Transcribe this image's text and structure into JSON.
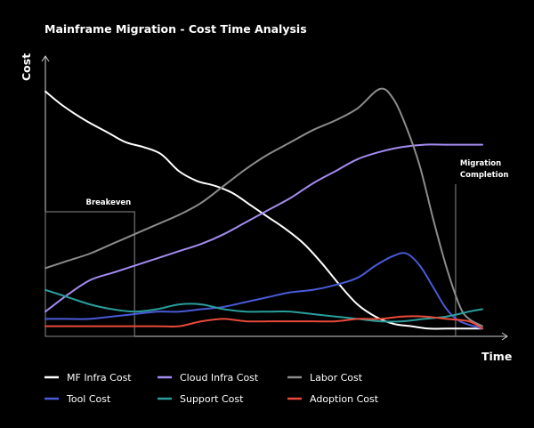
{
  "chart_data": {
    "type": "line",
    "title": "Mainframe Migration - Cost Time Analysis",
    "xlabel": "Time",
    "ylabel": "Cost",
    "xlim": [
      0,
      100
    ],
    "ylim": [
      0,
      100
    ],
    "grid": false,
    "legend_position": "bottom",
    "annotations": [
      {
        "text": "Breakeven",
        "x": 20
      },
      {
        "text": "Migration",
        "text2": "Completion",
        "x": 92
      }
    ],
    "series": [
      {
        "name": "MF Infra Cost",
        "color": "#ffffff",
        "x": [
          0,
          4,
          9,
          14,
          18,
          22,
          26,
          30,
          34,
          38,
          42,
          46,
          50,
          54,
          58,
          62,
          66,
          70,
          74,
          78,
          82,
          86,
          90,
          94,
          98
        ],
        "y": [
          99,
          93,
          87,
          82,
          78,
          76,
          73,
          66,
          62,
          60,
          57,
          52,
          47,
          42,
          36,
          28,
          19,
          11,
          6,
          3,
          2,
          1,
          1,
          1,
          1
        ]
      },
      {
        "name": "Cloud Infra Cost",
        "color": "#a58cf0",
        "x": [
          0,
          5,
          10,
          15,
          20,
          25,
          30,
          35,
          40,
          45,
          50,
          55,
          60,
          65,
          70,
          75,
          80,
          85,
          90,
          95,
          98
        ],
        "y": [
          8,
          15,
          21,
          24,
          27,
          30,
          33,
          36,
          40,
          45,
          50,
          55,
          61,
          66,
          71,
          74,
          76,
          77,
          77,
          77,
          77
        ]
      },
      {
        "name": "Labor Cost",
        "color": "#8c8c8c",
        "x": [
          0,
          5,
          10,
          15,
          20,
          25,
          30,
          35,
          40,
          45,
          50,
          55,
          60,
          65,
          70,
          75,
          78,
          81,
          84,
          87,
          90,
          93,
          95,
          98
        ],
        "y": [
          26,
          29,
          32,
          36,
          40,
          44,
          48,
          53,
          60,
          67,
          73,
          78,
          83,
          87,
          92,
          100,
          96,
          84,
          68,
          46,
          26,
          10,
          5,
          2
        ]
      },
      {
        "name": "Tool Cost",
        "color": "#4a5ad8",
        "x": [
          0,
          5,
          10,
          15,
          20,
          25,
          30,
          35,
          40,
          45,
          50,
          55,
          60,
          65,
          70,
          74,
          78,
          81,
          84,
          87,
          90,
          93,
          98
        ],
        "y": [
          5,
          5,
          5,
          6,
          7,
          8,
          8,
          9,
          10,
          12,
          14,
          16,
          17,
          19,
          22,
          27,
          31,
          32,
          27,
          18,
          9,
          4,
          1
        ]
      },
      {
        "name": "Support Cost",
        "color": "#2a9e9c",
        "x": [
          0,
          5,
          10,
          15,
          20,
          25,
          30,
          35,
          40,
          45,
          50,
          55,
          60,
          65,
          70,
          75,
          80,
          85,
          90,
          95,
          98
        ],
        "y": [
          17,
          14,
          11,
          9,
          8,
          9,
          11,
          11,
          9,
          8,
          8,
          8,
          7,
          6,
          5,
          4,
          4,
          5,
          6,
          8,
          9
        ]
      },
      {
        "name": "Adoption Cost",
        "color": "#e84a3a",
        "x": [
          0,
          5,
          10,
          15,
          20,
          25,
          30,
          35,
          40,
          45,
          50,
          55,
          60,
          65,
          70,
          75,
          80,
          85,
          90,
          95,
          98
        ],
        "y": [
          2,
          2,
          2,
          2,
          2,
          2,
          2,
          4,
          5,
          4,
          4,
          4,
          4,
          4,
          5,
          5,
          6,
          6,
          5,
          4,
          1
        ]
      }
    ]
  }
}
